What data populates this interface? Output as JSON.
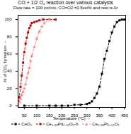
{
  "chart_data": {
    "type": "line",
    "title": "CO + 1/2 O₂ reaction over various catalysts",
    "subtitle": "Flow rate = 100 cc/min, CO=O2 =0.5vol% and rest is Ar",
    "xlabel": "Temperature (°C)",
    "ylabel": "% of CO₂ formation",
    "xlim": [
      25,
      455
    ],
    "ylim": [
      -2,
      105
    ],
    "xticks": [
      50,
      100,
      150,
      200,
      250,
      300,
      350,
      400,
      450
    ],
    "yticks": [
      0,
      20,
      40,
      60,
      80,
      100
    ],
    "grid": false,
    "legend": "bottom",
    "series": [
      {
        "name": "CeO₂",
        "color": "#000000",
        "marker": "square",
        "line_style": "dashed",
        "x": [
          50,
          100,
          150,
          175,
          200,
          225,
          250,
          275,
          300,
          310,
          320,
          330,
          340,
          350,
          360,
          370,
          380,
          390,
          400,
          410,
          420,
          430,
          440,
          450
        ],
        "values": [
          0,
          0,
          0,
          0,
          0,
          0,
          1,
          1,
          2,
          3,
          5,
          9,
          14,
          22,
          37,
          54,
          64,
          75,
          85,
          92,
          97,
          99,
          100,
          100
        ]
      },
      {
        "name": "Ce₀.₉₈Pd₀.₀₂O₂-δ",
        "color": "#cc0000",
        "marker": "square",
        "line_style": "dashed",
        "x": [
          25,
          30,
          35,
          40,
          45,
          50,
          55,
          60,
          65,
          70,
          75,
          80,
          90,
          100,
          110,
          125,
          150,
          175
        ],
        "values": [
          0,
          10,
          22,
          35,
          50,
          62,
          72,
          79,
          85,
          90,
          93,
          96,
          97,
          98,
          99,
          100,
          100,
          100
        ]
      },
      {
        "name": "Ce₀.₉₈Pt₀.₀₂O₂",
        "color": "#ff8888",
        "marker": "triangle",
        "line_style": "dashed",
        "x": [
          25,
          30,
          35,
          40,
          45,
          50,
          55,
          60,
          65,
          70,
          75,
          80,
          90,
          100,
          110,
          120,
          130,
          150
        ],
        "values": [
          0,
          4,
          8,
          12,
          16,
          20,
          25,
          32,
          38,
          44,
          52,
          58,
          68,
          78,
          86,
          92,
          96,
          100
        ]
      }
    ]
  }
}
